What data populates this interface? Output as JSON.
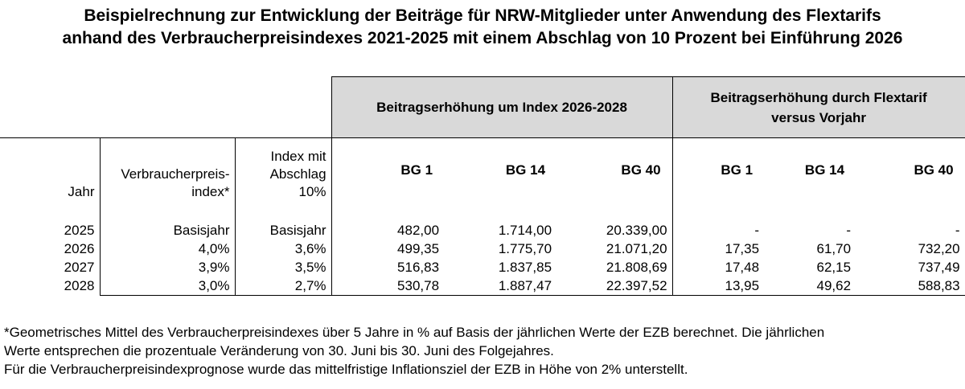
{
  "title": {
    "line1": "Beispielrechnung zur Entwicklung der Beiträge für NRW-Mitglieder unter Anwendung des Flextarifs",
    "line2": "anhand des Verbraucherpreisindexes 2021-2025 mit einem Abschlag von 10 Prozent bei Einführung 2026"
  },
  "groups": {
    "index": "Beitragserhöhung um Index 2026-2028",
    "flex_line1": "Beitragserhöhung durch Flextarif",
    "flex_line2": "versus Vorjahr"
  },
  "columns": {
    "year": "Jahr",
    "vpi_line1": "Verbraucherpreis-",
    "vpi_line2": "index*",
    "idx_line1": "Index mit",
    "idx_line2": "Abschlag",
    "idx_line3": "10%",
    "bg1": "BG 1",
    "bg14": "BG 14",
    "bg40": "BG 40"
  },
  "rows": [
    {
      "year": "2025",
      "vpi": "Basisjahr",
      "idx": "Basisjahr",
      "bg1": "482,00",
      "bg14": "1.714,00",
      "bg40": "20.339,00",
      "f1": "-",
      "f14": "-",
      "f40": "-"
    },
    {
      "year": "2026",
      "vpi": "4,0%",
      "idx": "3,6%",
      "bg1": "499,35",
      "bg14": "1.775,70",
      "bg40": "21.071,20",
      "f1": "17,35",
      "f14": "61,70",
      "f40": "732,20"
    },
    {
      "year": "2027",
      "vpi": "3,9%",
      "idx": "3,5%",
      "bg1": "516,83",
      "bg14": "1.837,85",
      "bg40": "21.808,69",
      "f1": "17,48",
      "f14": "62,15",
      "f40": "737,49"
    },
    {
      "year": "2028",
      "vpi": "3,0%",
      "idx": "2,7%",
      "bg1": "530,78",
      "bg14": "1.887,47",
      "bg40": "22.397,52",
      "f1": "13,95",
      "f14": "49,62",
      "f40": "588,83"
    }
  ],
  "footnote": {
    "line1": "*Geometrisches Mittel des Verbraucherpreisindexes über 5 Jahre in % auf Basis der jährlichen Werte der EZB berechnet. Die jährlichen",
    "line2": "Werte entsprechen die prozentuale Veränderung von 30. Juni bis 30. Juni des Folgejahres.",
    "line3": "Für die Verbraucherpreisindexprognose wurde das mittelfristige Inflationsziel der EZB in Höhe von 2% unterstellt."
  }
}
